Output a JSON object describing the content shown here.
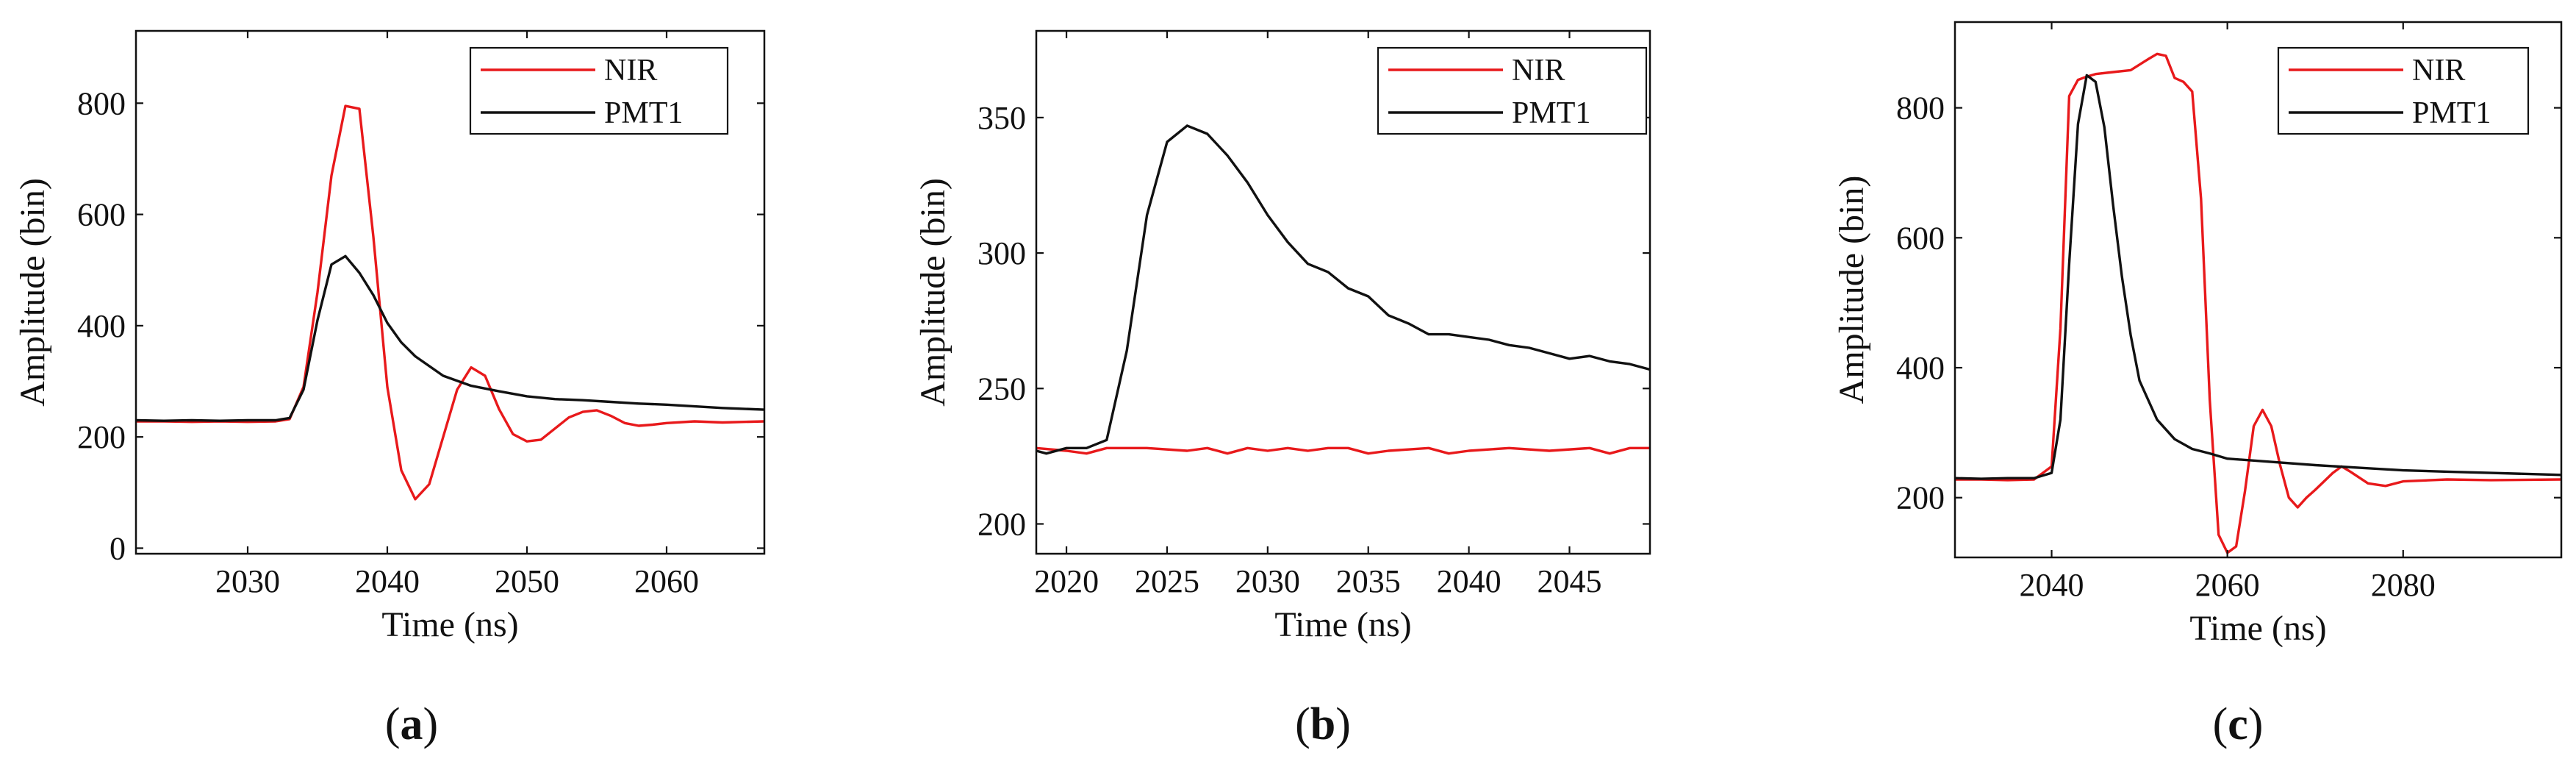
{
  "chart_data": [
    {
      "type": "line",
      "caption": "a",
      "xlabel": "Time (ns)",
      "ylabel": "Amplitude (bin)",
      "xlim": [
        2022,
        2067
      ],
      "ylim": [
        -10,
        930
      ],
      "xticks": [
        2030,
        2040,
        2050,
        2060
      ],
      "yticks": [
        0,
        200,
        400,
        600,
        800
      ],
      "legend_position": "top-right",
      "grid": false,
      "series": [
        {
          "name": "NIR",
          "color": "#e8191b",
          "x": [
            2022,
            2024,
            2026,
            2028,
            2030,
            2032,
            2033,
            2034,
            2035,
            2036,
            2037,
            2038,
            2039,
            2040,
            2041,
            2042,
            2043,
            2044,
            2045,
            2046,
            2047,
            2048,
            2049,
            2050,
            2051,
            2052,
            2053,
            2054,
            2055,
            2056,
            2057,
            2058,
            2059,
            2060,
            2062,
            2064,
            2067
          ],
          "y": [
            228,
            228,
            227,
            228,
            227,
            228,
            232,
            290,
            460,
            670,
            795,
            790,
            560,
            290,
            140,
            88,
            115,
            200,
            285,
            325,
            310,
            250,
            205,
            192,
            195,
            215,
            235,
            245,
            248,
            238,
            225,
            220,
            222,
            225,
            228,
            226,
            228
          ]
        },
        {
          "name": "PMT1",
          "color": "#111111",
          "x": [
            2022,
            2024,
            2026,
            2028,
            2030,
            2032,
            2033,
            2034,
            2035,
            2036,
            2037,
            2038,
            2039,
            2040,
            2041,
            2042,
            2044,
            2046,
            2048,
            2050,
            2052,
            2054,
            2056,
            2058,
            2060,
            2062,
            2064,
            2067
          ],
          "y": [
            230,
            229,
            230,
            229,
            230,
            230,
            234,
            285,
            410,
            510,
            525,
            495,
            455,
            405,
            370,
            345,
            310,
            292,
            282,
            273,
            268,
            266,
            263,
            260,
            258,
            255,
            252,
            249
          ]
        }
      ]
    },
    {
      "type": "line",
      "caption": "b",
      "xlabel": "Time (ns)",
      "ylabel": "Amplitude (bin)",
      "xlim": [
        2018.5,
        2049
      ],
      "ylim": [
        189,
        382
      ],
      "xticks": [
        2020,
        2025,
        2030,
        2035,
        2040,
        2045
      ],
      "yticks": [
        200,
        250,
        300,
        350
      ],
      "legend_position": "top-right",
      "grid": false,
      "series": [
        {
          "name": "NIR",
          "color": "#e8191b",
          "x": [
            2018.5,
            2020,
            2021,
            2022,
            2024,
            2026,
            2027,
            2028,
            2029,
            2030,
            2031,
            2032,
            2033,
            2034,
            2035,
            2036,
            2038,
            2039,
            2040,
            2042,
            2044,
            2046,
            2047,
            2048,
            2049
          ],
          "y": [
            228,
            227,
            226,
            228,
            228,
            227,
            228,
            226,
            228,
            227,
            228,
            227,
            228,
            228,
            226,
            227,
            228,
            226,
            227,
            228,
            227,
            228,
            226,
            228,
            228
          ]
        },
        {
          "name": "PMT1",
          "color": "#111111",
          "x": [
            2018.5,
            2019,
            2020,
            2021,
            2022,
            2023,
            2024,
            2025,
            2026,
            2027,
            2028,
            2029,
            2030,
            2031,
            2032,
            2033,
            2034,
            2035,
            2036,
            2037,
            2038,
            2039,
            2040,
            2041,
            2042,
            2043,
            2044,
            2045,
            2046,
            2047,
            2048,
            2049
          ],
          "y": [
            227,
            226,
            228,
            228,
            231,
            264,
            314,
            341,
            347,
            344,
            336,
            326,
            314,
            304,
            296,
            293,
            287,
            284,
            277,
            274,
            270,
            270,
            269,
            268,
            266,
            265,
            263,
            261,
            262,
            260,
            259,
            257
          ]
        }
      ]
    },
    {
      "type": "line",
      "caption": "c",
      "xlabel": "Time (ns)",
      "ylabel": "Amplitude (bin)",
      "xlim": [
        2029,
        2098
      ],
      "ylim": [
        108,
        932
      ],
      "xticks": [
        2040,
        2060,
        2080
      ],
      "yticks": [
        200,
        400,
        600,
        800
      ],
      "legend_position": "top-right",
      "grid": false,
      "series": [
        {
          "name": "NIR",
          "color": "#e8191b",
          "x": [
            2029,
            2032,
            2035,
            2038,
            2040,
            2041,
            2042,
            2043,
            2044,
            2045,
            2047,
            2049,
            2051,
            2052,
            2053,
            2054,
            2055,
            2056,
            2057,
            2058,
            2059,
            2060,
            2061,
            2062,
            2063,
            2064,
            2065,
            2066,
            2067,
            2068,
            2069,
            2070,
            2072,
            2073,
            2074,
            2076,
            2078,
            2080,
            2085,
            2090,
            2098
          ],
          "y": [
            228,
            228,
            227,
            228,
            248,
            460,
            818,
            843,
            848,
            852,
            855,
            858,
            875,
            883,
            880,
            846,
            840,
            825,
            660,
            350,
            143,
            115,
            125,
            210,
            310,
            335,
            310,
            250,
            200,
            185,
            200,
            212,
            238,
            248,
            240,
            222,
            218,
            225,
            228,
            227,
            228
          ]
        },
        {
          "name": "PMT1",
          "color": "#111111",
          "x": [
            2029,
            2032,
            2035,
            2038,
            2040,
            2041,
            2042,
            2043,
            2044,
            2045,
            2046,
            2047,
            2048,
            2049,
            2050,
            2052,
            2054,
            2056,
            2058,
            2060,
            2065,
            2070,
            2075,
            2080,
            2085,
            2090,
            2098
          ],
          "y": [
            230,
            229,
            230,
            230,
            238,
            320,
            560,
            775,
            850,
            840,
            770,
            650,
            540,
            450,
            380,
            320,
            290,
            275,
            268,
            260,
            255,
            250,
            246,
            242,
            240,
            238,
            235
          ]
        }
      ]
    }
  ]
}
